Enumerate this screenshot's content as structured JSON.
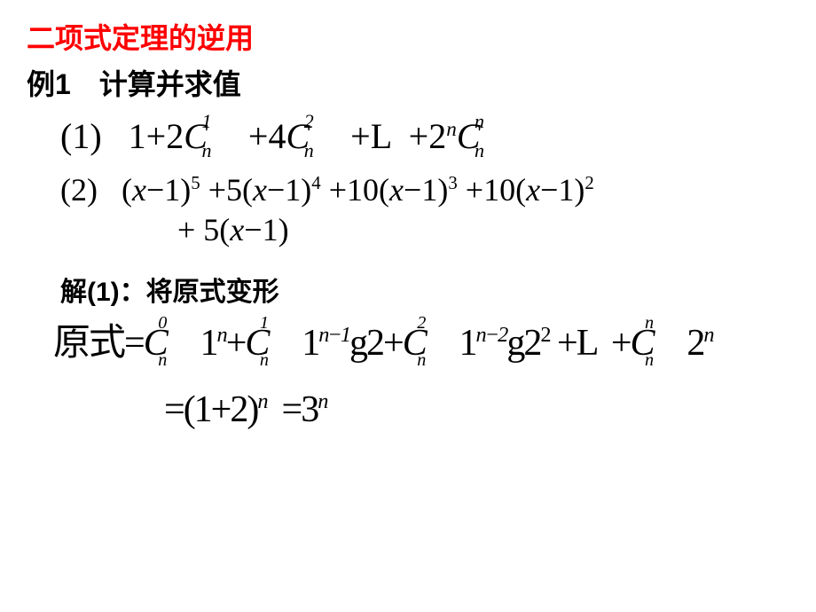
{
  "title": "二项式定理的逆用",
  "example_heading": "例1　计算并求值",
  "problem1": {
    "label": "(1)",
    "t1": "1",
    "plus": "+",
    "two": "2",
    "C": "C",
    "four": "4",
    "L": "L",
    "n": "n",
    "one_sup": "1",
    "two_sup": "2"
  },
  "problem2": {
    "label": "(2)",
    "seg1": "(",
    "x": "x",
    "minus1": "−1)",
    "p5": "5",
    "p4": "4",
    "p3": "3",
    "p2": "2",
    "c5": "5(",
    "c10": "10(",
    "plus": "+",
    "line2": "+ 5(",
    "end": "−1)"
  },
  "solution_label": "解(1)：将原式变形",
  "solution": {
    "lhs": "原式",
    "eq": "=",
    "C": "C",
    "one": "1",
    "g": "g",
    "two": "2",
    "L": "L",
    "plus": "+",
    "n": "n",
    "nm1": "n−1",
    "nm2": "n−2",
    "zero": "0",
    "sq": "2",
    "final1": "(1+2)",
    "final2": "3"
  },
  "colors": {
    "title": "#ff0000",
    "text": "#000000",
    "background": "#ffffff"
  },
  "fonts": {
    "chinese_heading": "SimHei",
    "math": "Times New Roman",
    "title_size": 32,
    "math_size": 40
  }
}
